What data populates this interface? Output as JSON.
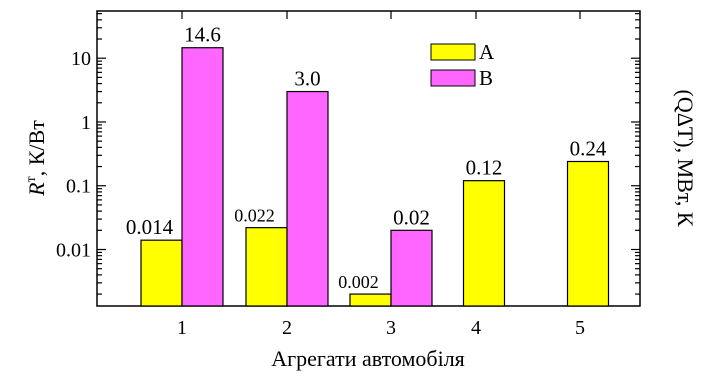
{
  "chart_data": {
    "type": "bar",
    "xlabel": "Агрегати автомобіля",
    "ylabel": {
      "main": "R",
      "sup": "т",
      "rest": ", К/Вт"
    },
    "ylabel_right": "(QΔT), МВт, К",
    "yscale": "log",
    "ylim": [
      0.0013,
      55
    ],
    "yticks": [
      {
        "value": 0.01,
        "label": "0.01"
      },
      {
        "value": 0.1,
        "label": "0.1"
      },
      {
        "value": 1,
        "label": "1"
      },
      {
        "value": 10,
        "label": "10"
      }
    ],
    "categories": [
      "1",
      "2",
      "3",
      "4",
      "5"
    ],
    "series": [
      {
        "name": "A",
        "color": "#ffff00",
        "values": [
          0.014,
          0.022,
          0.002,
          0.12,
          0.24
        ],
        "labels": [
          "0.014",
          "0.022",
          "0.002",
          "0.12",
          "0.24"
        ]
      },
      {
        "name": "B",
        "color": "#ff66ff",
        "values": [
          14.6,
          3.0,
          0.02,
          null,
          null
        ],
        "labels": [
          "14.6",
          "3.0",
          "0.02",
          "",
          ""
        ]
      }
    ],
    "legend_position": "top-center",
    "grid": false
  }
}
